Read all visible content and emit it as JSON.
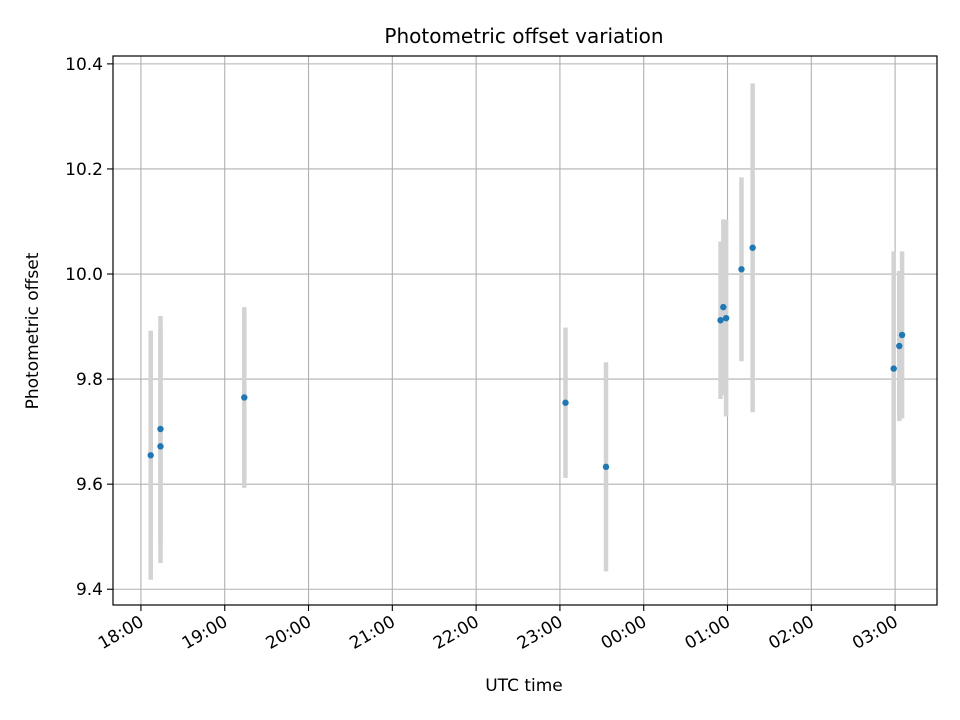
{
  "chart_data": {
    "type": "scatter",
    "title": "Photometric offset variation",
    "xlabel": "UTC time",
    "ylabel": "Photometric offset",
    "grid": true,
    "x_axis": {
      "kind": "time",
      "range": [
        "17:40",
        "03:30"
      ],
      "ticks": [
        "18:00",
        "19:00",
        "20:00",
        "21:00",
        "22:00",
        "23:00",
        "00:00",
        "01:00",
        "02:00",
        "03:00"
      ]
    },
    "y_axis": {
      "range": [
        9.37,
        10.415
      ],
      "ticks": [
        9.4,
        9.6,
        9.8,
        10.0,
        10.2,
        10.4
      ],
      "tick_labels": [
        "9.4",
        "9.6",
        "9.8",
        "10.0",
        "10.2",
        "10.4"
      ]
    },
    "colors": {
      "points": "#1f77b4",
      "error_bars": "#d3d3d3",
      "grid": "#b0b0b0"
    },
    "points": [
      {
        "x": "18:07",
        "y": 9.655,
        "err": 0.237
      },
      {
        "x": "18:14",
        "y": 9.672,
        "err": 0.222
      },
      {
        "x": "18:14",
        "y": 9.705,
        "err": 0.215
      },
      {
        "x": "19:14",
        "y": 9.765,
        "err": 0.172
      },
      {
        "x": "23:04",
        "y": 9.755,
        "err": 0.143
      },
      {
        "x": "23:33",
        "y": 9.633,
        "err": 0.199
      },
      {
        "x": "00:55",
        "y": 9.912,
        "err": 0.15
      },
      {
        "x": "00:57",
        "y": 9.937,
        "err": 0.167
      },
      {
        "x": "00:59",
        "y": 9.916,
        "err": 0.187
      },
      {
        "x": "01:10",
        "y": 10.009,
        "err": 0.175
      },
      {
        "x": "01:18",
        "y": 10.05,
        "err": 0.313
      },
      {
        "x": "02:59",
        "y": 9.82,
        "err": 0.223
      },
      {
        "x": "03:03",
        "y": 9.863,
        "err": 0.143
      },
      {
        "x": "03:05",
        "y": 9.884,
        "err": 0.159
      }
    ]
  }
}
